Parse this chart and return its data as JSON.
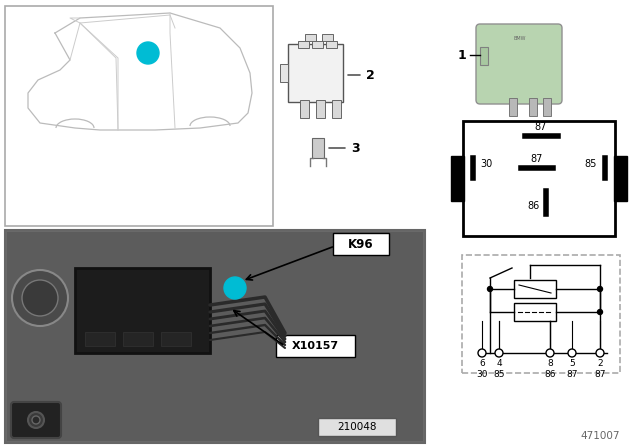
{
  "background": "#ffffff",
  "relay_green_color": "#b8d4b0",
  "label1_color": "#00bcd4",
  "k96_text": "K96",
  "x10157_text": "X10157",
  "id_text": "210048",
  "diagram_id": "471007",
  "pin_labels_box": [
    "87",
    "30",
    "87",
    "85",
    "86"
  ],
  "circuit_pins_num": [
    "6",
    "4",
    "8",
    "5",
    "2"
  ],
  "circuit_pins_name": [
    "30",
    "85",
    "86",
    "87",
    "87"
  ]
}
